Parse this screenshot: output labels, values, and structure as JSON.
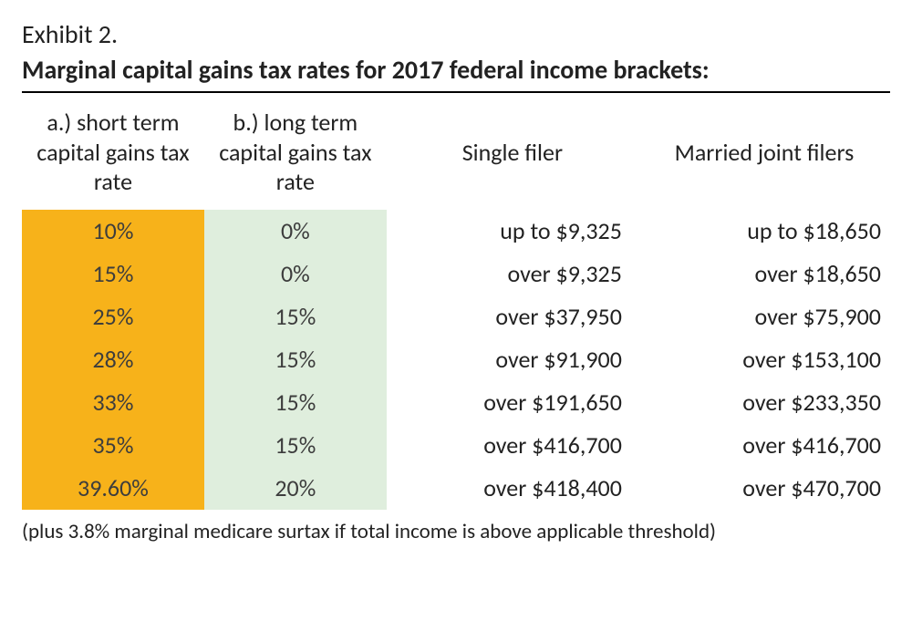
{
  "header": {
    "exhibit_label": "Exhibit 2.",
    "title": "Marginal capital gains tax rates for 2017 federal income brackets:"
  },
  "table": {
    "columns": [
      {
        "key": "short_term",
        "label": "a.) short term capital gains tax rate",
        "width_pct": 21,
        "align": "center",
        "bg_color": "#f7b21a",
        "text_color": "#3d3d3d"
      },
      {
        "key": "long_term",
        "label": "b.) long term capital gains tax rate",
        "width_pct": 21,
        "align": "center",
        "bg_color": "#dfeedd",
        "text_color": "#3d3d3d"
      },
      {
        "key": "single",
        "label": "Single filer",
        "width_pct": 29,
        "align": "right",
        "bg_color": "#ffffff",
        "text_color": "#222222"
      },
      {
        "key": "married",
        "label": "Married joint filers",
        "width_pct": 29,
        "align": "right",
        "bg_color": "#ffffff",
        "text_color": "#222222"
      }
    ],
    "header_font_size_pt": 20,
    "body_font_size_pt": 20,
    "rows": [
      {
        "short_term": "10%",
        "long_term": "0%",
        "single": "up to $9,325",
        "married": "up to $18,650"
      },
      {
        "short_term": "15%",
        "long_term": "0%",
        "single": "over $9,325",
        "married": "over $18,650"
      },
      {
        "short_term": "25%",
        "long_term": "15%",
        "single": "over $37,950",
        "married": "over $75,900"
      },
      {
        "short_term": "28%",
        "long_term": "15%",
        "single": "over $91,900",
        "married": "over $153,100"
      },
      {
        "short_term": "33%",
        "long_term": "15%",
        "single": "over $191,650",
        "married": "over $233,350"
      },
      {
        "short_term": "35%",
        "long_term": "15%",
        "single": "over $416,700",
        "married": "over $416,700"
      },
      {
        "short_term": "39.60%",
        "long_term": "20%",
        "single": "over $418,400",
        "married": "over $470,700"
      }
    ]
  },
  "footnote": "(plus 3.8% marginal medicare surtax if total income is above applicable threshold)",
  "colors": {
    "page_bg": "#ffffff",
    "text": "#222222",
    "rule": "#000000",
    "col_a_bg": "#f7b21a",
    "col_b_bg": "#dfeedd"
  }
}
